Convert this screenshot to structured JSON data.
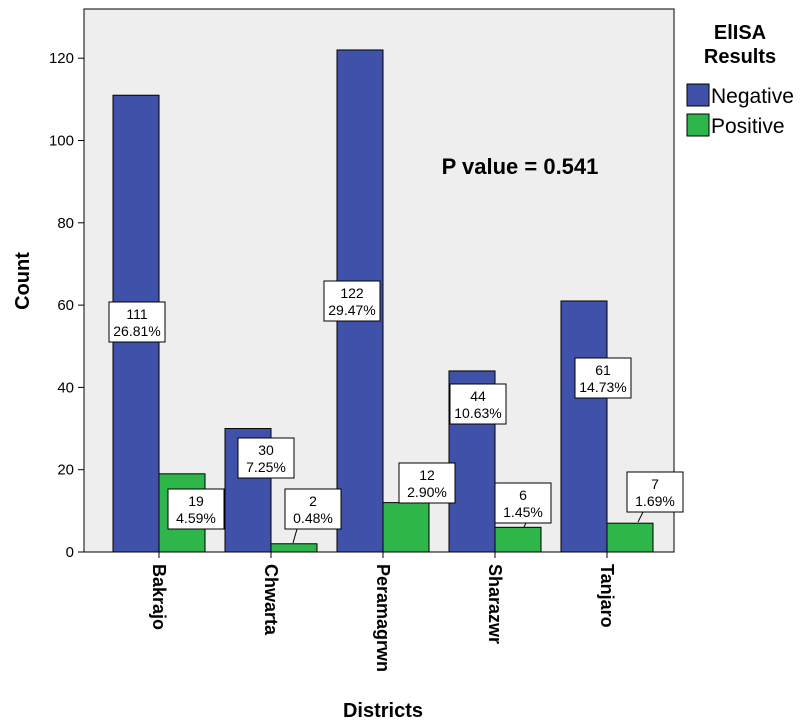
{
  "chart_data": {
    "type": "bar",
    "xlabel": "Districts",
    "ylabel": "Count",
    "ylim": [
      0,
      130
    ],
    "yticks": [
      0,
      20,
      40,
      60,
      80,
      100,
      120
    ],
    "grid": false,
    "categories": [
      "Bakrajo",
      "Chwarta",
      "Peramagrwn",
      "Sharazwr",
      "Tanjaro"
    ],
    "legend": {
      "title_line1": "ElISA",
      "title_line2": "Results",
      "placement": "right"
    },
    "series": [
      {
        "name": "Negative",
        "color": "#3F51A8",
        "values": [
          111,
          30,
          122,
          44,
          61
        ],
        "percent_labels": [
          "26.81%",
          "7.25%",
          "29.47%",
          "10.63%",
          "14.73%"
        ]
      },
      {
        "name": "Positive",
        "color": "#2EB64A",
        "values": [
          19,
          2,
          12,
          6,
          7
        ],
        "percent_labels": [
          "4.59%",
          "0.48%",
          "2.90%",
          "1.45%",
          "1.69%"
        ]
      }
    ],
    "annotation": "P value = 0.541"
  }
}
